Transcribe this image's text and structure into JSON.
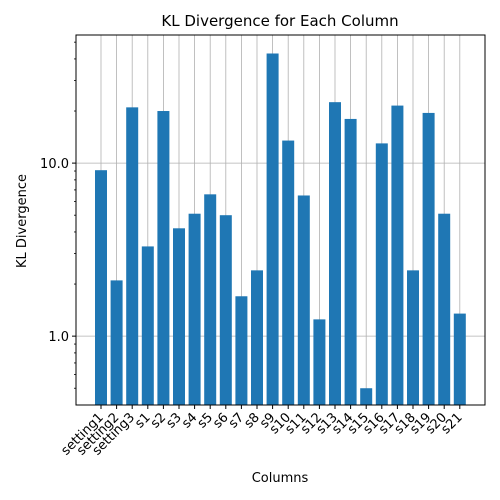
{
  "chart_data": {
    "type": "bar",
    "title": "KL Divergence for Each Column",
    "xlabel": "Columns",
    "ylabel": "KL Divergence",
    "yscale": "log",
    "ylim": [
      0.4,
      55
    ],
    "yticks": [
      1.0,
      10.0
    ],
    "ytick_labels": [
      "1.0",
      "10.0"
    ],
    "grid": true,
    "bar_color": "#1f77b4",
    "categories": [
      "setting1",
      "setting2",
      "setting3",
      "s1",
      "s2",
      "s3",
      "s4",
      "s5",
      "s6",
      "s7",
      "s8",
      "s9",
      "s10",
      "s11",
      "s12",
      "s13",
      "s14",
      "s15",
      "s16",
      "s17",
      "s18",
      "s19",
      "s20",
      "s21"
    ],
    "values": [
      9.1,
      2.1,
      21,
      3.3,
      20,
      4.2,
      5.1,
      6.6,
      5.0,
      1.7,
      2.4,
      43,
      13.5,
      6.5,
      1.25,
      22.5,
      18,
      0.5,
      13,
      21.5,
      2.4,
      19.5,
      5.1,
      1.35
    ]
  }
}
